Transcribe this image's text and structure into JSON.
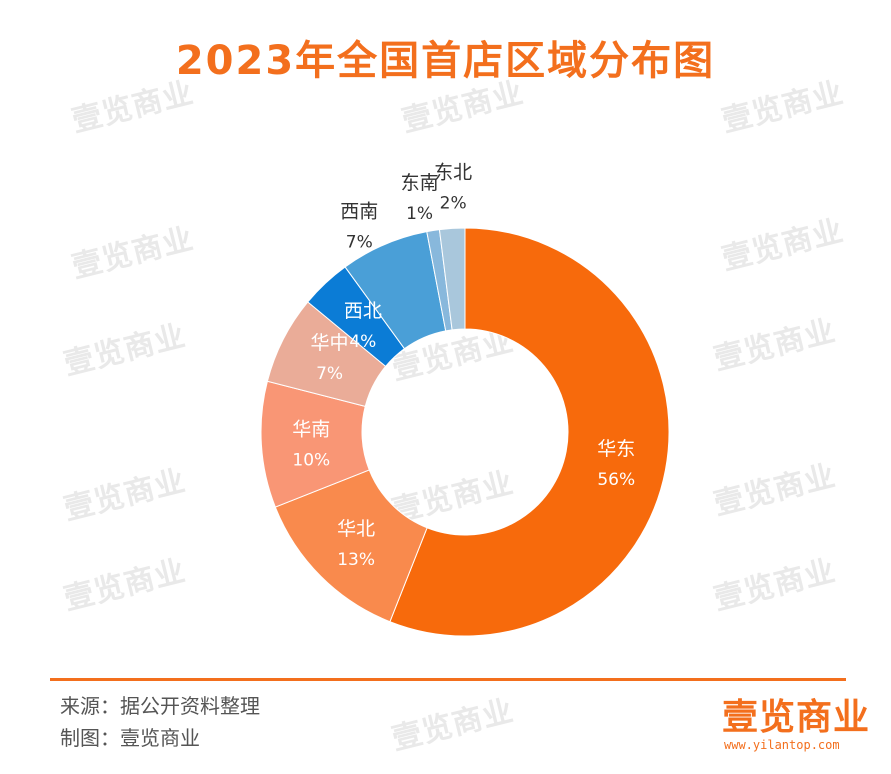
{
  "title": "2023年全国首店区域分布图",
  "chart_data": {
    "type": "pie",
    "variant": "donut",
    "title": "2023年全国首店区域分布图",
    "slices": [
      {
        "name": "华东",
        "value": 56,
        "label": "56%",
        "color": "#f76a0c"
      },
      {
        "name": "华北",
        "value": 13,
        "label": "13%",
        "color": "#f98a4d"
      },
      {
        "name": "华南",
        "value": 10,
        "label": "10%",
        "color": "#f99675"
      },
      {
        "name": "华中",
        "value": 7,
        "label": "7%",
        "color": "#eaac98"
      },
      {
        "name": "西北",
        "value": 4,
        "label": "4%",
        "color": "#0b7cd6"
      },
      {
        "name": "西南",
        "value": 7,
        "label": "7%",
        "color": "#4a9fd7"
      },
      {
        "name": "东南",
        "value": 1,
        "label": "1%",
        "color": "#88b8dc"
      },
      {
        "name": "东北",
        "value": 2,
        "label": "2%",
        "color": "#a9c7dc"
      }
    ],
    "legend": "none"
  },
  "watermark": "壹览商业",
  "footer": {
    "source": "来源：据公开资料整理",
    "maker": "制图：壹览商业"
  },
  "brand": {
    "name": "壹览商业",
    "url": "www.yilantop.com"
  },
  "colors": {
    "accent": "#f36f1d"
  }
}
